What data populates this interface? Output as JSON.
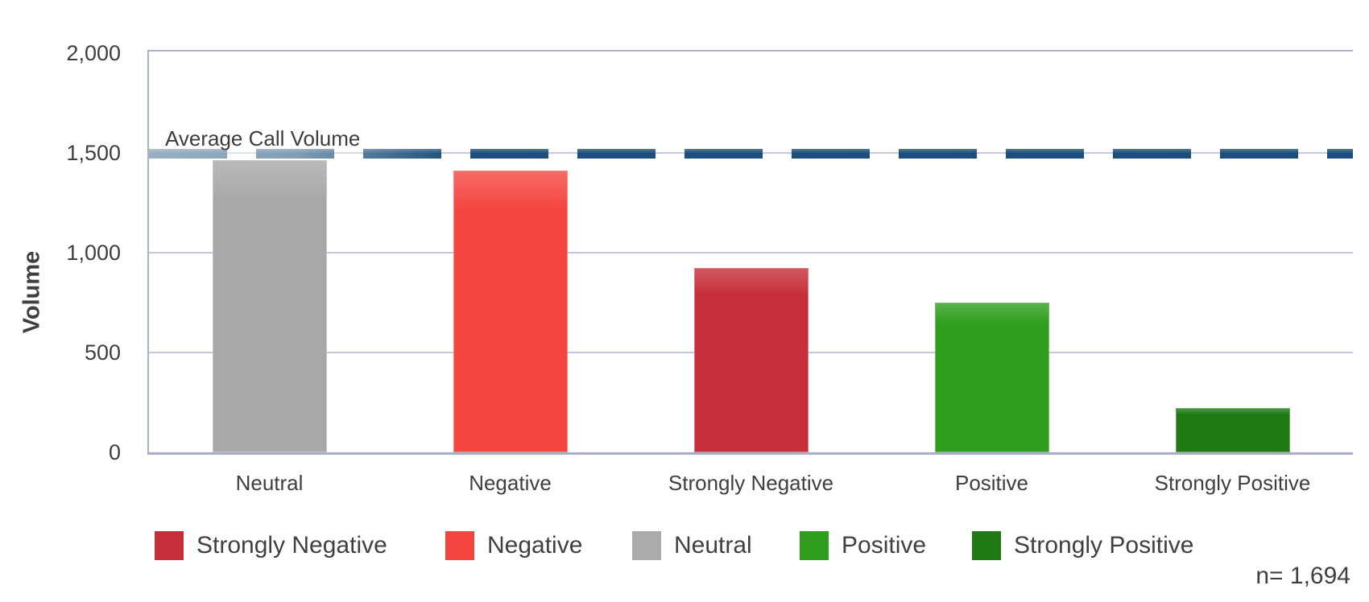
{
  "chart_data": {
    "type": "bar",
    "title": "",
    "ylabel": "Volume",
    "ylim": [
      0,
      2000
    ],
    "yticks": [
      {
        "value": 2000,
        "label": "2,000"
      },
      {
        "value": 1500,
        "label": "1,500"
      },
      {
        "value": 1000,
        "label": "1,000"
      },
      {
        "value": 500,
        "label": "500"
      },
      {
        "value": 0,
        "label": "0"
      }
    ],
    "grid": "horizontal",
    "categories": [
      "Neutral",
      "Negative",
      "Strongly Negative",
      "Positive",
      "Strongly Positive"
    ],
    "values": [
      1465,
      1410,
      925,
      750,
      220
    ],
    "bar_colors": [
      "#A8A8A8",
      "#F5453F",
      "#C62F39",
      "#2F9E1D",
      "#1F7A13"
    ],
    "average_line": {
      "label": "Average Call Volume",
      "value": 1500,
      "color": "#1B4E78",
      "style": "dashed"
    },
    "legend_position": "bottom",
    "legend": [
      {
        "label": "Strongly Negative",
        "color": "#C62F39"
      },
      {
        "label": "Negative",
        "color": "#F5453F"
      },
      {
        "label": "Neutral",
        "color": "#ABABAB"
      },
      {
        "label": "Positive",
        "color": "#2F9E1D"
      },
      {
        "label": "Strongly Positive",
        "color": "#1F7A13"
      }
    ],
    "sample_size_label": "n= 1,694"
  },
  "colors": {
    "axis_border": "#AEB2C9",
    "gridline": "#C5C8DC",
    "tick_text": "#3F3F3F",
    "legend_text": "#404040",
    "background": "#FFFFFF"
  }
}
